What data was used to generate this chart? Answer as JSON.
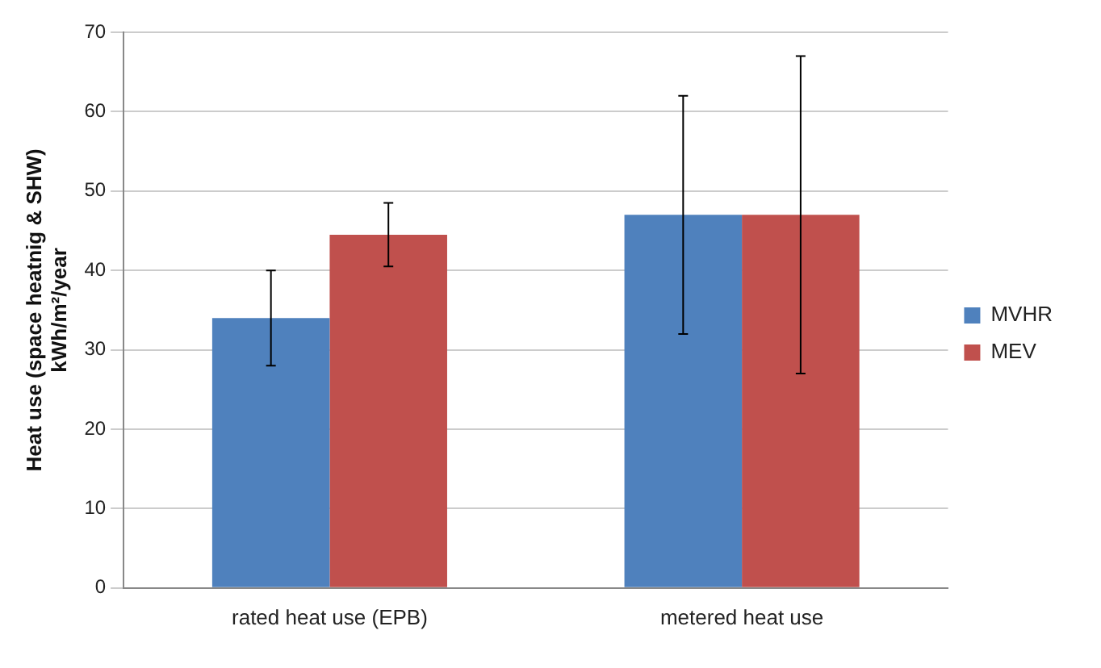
{
  "chart_data": {
    "type": "bar",
    "ylabel": "Heat use (space heatnig & SHW)\nkWh/m²/year",
    "categories": [
      "rated heat use (EPB)",
      "metered heat use"
    ],
    "series": [
      {
        "name": "MVHR",
        "color": "#4f81bd",
        "values": [
          34,
          47
        ],
        "errors": [
          6,
          15
        ]
      },
      {
        "name": "MEV",
        "color": "#c0504d",
        "values": [
          44.5,
          47
        ],
        "errors": [
          4,
          20
        ]
      }
    ],
    "ylim": [
      0,
      70
    ],
    "yticks": [
      0,
      10,
      20,
      30,
      40,
      50,
      60,
      70
    ],
    "grid": "y",
    "legend": "right"
  }
}
